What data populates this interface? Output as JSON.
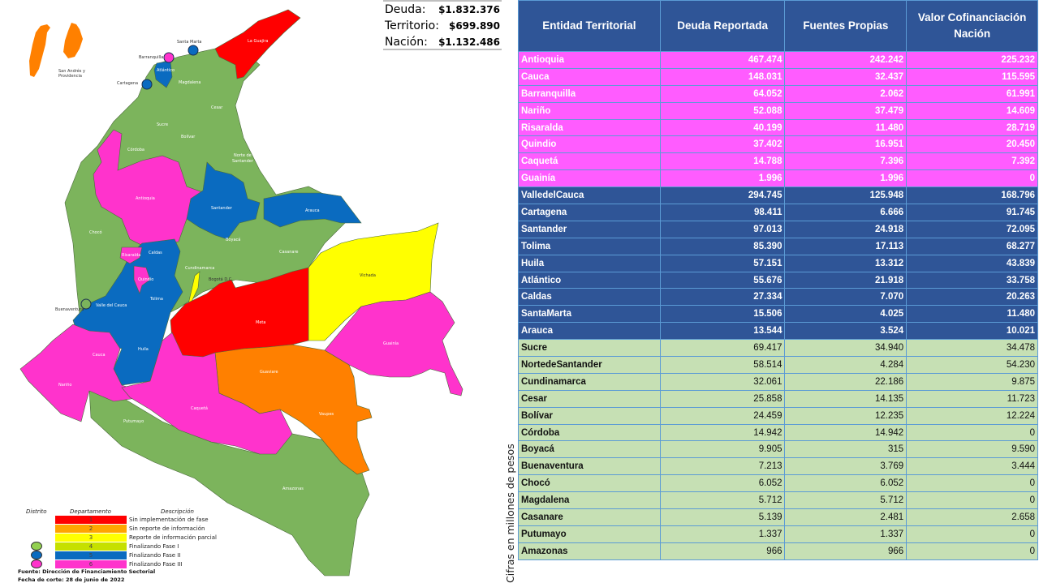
{
  "totals": {
    "deuda_label": "Deuda:",
    "deuda_value": "$1.832.376",
    "territorio_label": "Territorio:",
    "territorio_value": "$699.890",
    "nacion_label": "Nación:",
    "nacion_value": "$1.132.486"
  },
  "map": {
    "islands_label_1": "San Andrés y",
    "islands_label_2": "Providencia",
    "districts": {
      "santa_marta": "Santa Marta",
      "barranquilla": "Barranquilla",
      "cartagena": "Cartagena",
      "buenaventura": "Buenaventura",
      "bogota": "Bogotá D.C."
    },
    "departments": {
      "la_guajira": "La Guajira",
      "atlantico": "Atlántico",
      "magdalena": "Magdalena",
      "cesar": "Cesar",
      "sucre": "Sucre",
      "bolivar": "Bolívar",
      "cordoba": "Córdoba",
      "norte_santander_1": "Norte de",
      "norte_santander_2": "Santander",
      "antioquia": "Antioquia",
      "santander": "Santander",
      "arauca": "Arauca",
      "choco": "Chocó",
      "boyaca": "Boyacá",
      "casanare": "Casanare",
      "caldas": "Caldas",
      "risaralda": "Risaralda",
      "cundinamarca": "Cundinamarca",
      "quindio": "Quindío",
      "vichada": "Vichada",
      "tolima": "Tolima",
      "valle": "Valle del Cauca",
      "meta": "Meta",
      "guainia": "Guainía",
      "cauca": "Cauca",
      "huila": "Huila",
      "narino": "Nariño",
      "guaviare": "Guaviare",
      "caqueta": "Caquetá",
      "vaupes": "Vaupes",
      "putumayo": "Putumayo",
      "amazonas": "Amazonas"
    },
    "colors": {
      "phase1": "#ff0000",
      "phase2": "#ff8000",
      "phase3": "#ffff00",
      "phase4": "#7cb45c",
      "phase5": "#0a6bc0",
      "phase6": "#ff33cc"
    }
  },
  "legend": {
    "col_distrito": "Distrito",
    "col_departamento": "Departamento",
    "col_descripcion": "Descripción",
    "items": [
      {
        "num": "1",
        "desc": "Sin implementación de fase",
        "color": "#ff0000"
      },
      {
        "num": "2",
        "desc": "Sin reporte de información",
        "color": "#ffa500"
      },
      {
        "num": "3",
        "desc": "Reporte de información parcial",
        "color": "#ffff00"
      },
      {
        "num": "4",
        "desc": "Finalizando Fase I",
        "color": "#c6e000"
      },
      {
        "num": "5",
        "desc": "Finalizando Fase II",
        "color": "#0a6bc0"
      },
      {
        "num": "6",
        "desc": "Finalizando Fase III",
        "color": "#ff33cc"
      }
    ],
    "source": "Fuente: Dirección de Financiamiento Sectorial",
    "cutoff": "Fecha de corte: 28 de junio de 2022"
  },
  "vertical_note": "Cifras en millones de pesos",
  "table": {
    "headers": [
      "Entidad Territorial",
      "Deuda Reportada",
      "Fuentes Propias",
      "Valor Cofinanciación Nación"
    ],
    "rows": [
      {
        "group": "6",
        "name": "Antioquia",
        "deuda": "467.474",
        "propias": "242.242",
        "nacion": "225.232"
      },
      {
        "group": "6",
        "name": "Cauca",
        "deuda": "148.031",
        "propias": "32.437",
        "nacion": "115.595"
      },
      {
        "group": "6",
        "name": "Barranquilla",
        "deuda": "64.052",
        "propias": "2.062",
        "nacion": "61.991"
      },
      {
        "group": "6",
        "name": "Nariño",
        "deuda": "52.088",
        "propias": "37.479",
        "nacion": "14.609"
      },
      {
        "group": "6",
        "name": "Risaralda",
        "deuda": "40.199",
        "propias": "11.480",
        "nacion": "28.719"
      },
      {
        "group": "6",
        "name": "Quindio",
        "deuda": "37.402",
        "propias": "16.951",
        "nacion": "20.450"
      },
      {
        "group": "6",
        "name": "Caquetá",
        "deuda": "14.788",
        "propias": "7.396",
        "nacion": "7.392"
      },
      {
        "group": "6",
        "name": "Guainía",
        "deuda": "1.996",
        "propias": "1.996",
        "nacion": "0"
      },
      {
        "group": "5",
        "name": "ValledelCauca",
        "deuda": "294.745",
        "propias": "125.948",
        "nacion": "168.796"
      },
      {
        "group": "5",
        "name": "Cartagena",
        "deuda": "98.411",
        "propias": "6.666",
        "nacion": "91.745"
      },
      {
        "group": "5",
        "name": "Santander",
        "deuda": "97.013",
        "propias": "24.918",
        "nacion": "72.095"
      },
      {
        "group": "5",
        "name": "Tolima",
        "deuda": "85.390",
        "propias": "17.113",
        "nacion": "68.277"
      },
      {
        "group": "5",
        "name": "Huila",
        "deuda": "57.151",
        "propias": "13.312",
        "nacion": "43.839"
      },
      {
        "group": "5",
        "name": "Atlántico",
        "deuda": "55.676",
        "propias": "21.918",
        "nacion": "33.758"
      },
      {
        "group": "5",
        "name": "Caldas",
        "deuda": "27.334",
        "propias": "7.070",
        "nacion": "20.263"
      },
      {
        "group": "5",
        "name": "SantaMarta",
        "deuda": "15.506",
        "propias": "4.025",
        "nacion": "11.480"
      },
      {
        "group": "5",
        "name": "Arauca",
        "deuda": "13.544",
        "propias": "3.524",
        "nacion": "10.021"
      },
      {
        "group": "4",
        "name": "Sucre",
        "deuda": "69.417",
        "propias": "34.940",
        "nacion": "34.478"
      },
      {
        "group": "4",
        "name": "NortedeSantander",
        "deuda": "58.514",
        "propias": "4.284",
        "nacion": "54.230"
      },
      {
        "group": "4",
        "name": "Cundinamarca",
        "deuda": "32.061",
        "propias": "22.186",
        "nacion": "9.875"
      },
      {
        "group": "4",
        "name": "Cesar",
        "deuda": "25.858",
        "propias": "14.135",
        "nacion": "11.723"
      },
      {
        "group": "4",
        "name": "Bolívar",
        "deuda": "24.459",
        "propias": "12.235",
        "nacion": "12.224"
      },
      {
        "group": "4",
        "name": "Córdoba",
        "deuda": "14.942",
        "propias": "14.942",
        "nacion": "0"
      },
      {
        "group": "4",
        "name": "Boyacá",
        "deuda": "9.905",
        "propias": "315",
        "nacion": "9.590"
      },
      {
        "group": "4",
        "name": "Buenaventura",
        "deuda": "7.213",
        "propias": "3.769",
        "nacion": "3.444"
      },
      {
        "group": "4",
        "name": "Chocó",
        "deuda": "6.052",
        "propias": "6.052",
        "nacion": "0"
      },
      {
        "group": "4",
        "name": "Magdalena",
        "deuda": "5.712",
        "propias": "5.712",
        "nacion": "0"
      },
      {
        "group": "4",
        "name": "Casanare",
        "deuda": "5.139",
        "propias": "2.481",
        "nacion": "2.658"
      },
      {
        "group": "4",
        "name": "Putumayo",
        "deuda": "1.337",
        "propias": "1.337",
        "nacion": "0"
      },
      {
        "group": "4",
        "name": "Amazonas",
        "deuda": "966",
        "propias": "966",
        "nacion": "0"
      }
    ]
  }
}
